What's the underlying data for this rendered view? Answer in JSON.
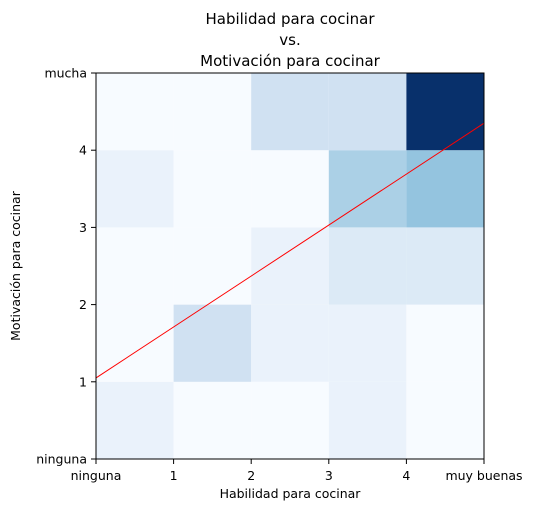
{
  "chart_data": {
    "type": "heatmap",
    "title_lines": [
      "Habilidad para cocinar",
      "vs.",
      "Motivación para cocinar"
    ],
    "xlabel": "Habilidad para cocinar",
    "ylabel": "Motivación para cocinar",
    "x_ticks": [
      0,
      1,
      2,
      3,
      4,
      5
    ],
    "x_tick_labels": [
      "ninguna",
      "1",
      "2",
      "3",
      "4",
      "muy buenas"
    ],
    "y_ticks": [
      0,
      1,
      2,
      3,
      4,
      5
    ],
    "y_tick_labels": [
      "ninguna",
      "1",
      "2",
      "3",
      "4",
      "mucha"
    ],
    "xlim": [
      0,
      5
    ],
    "ylim": [
      0,
      5
    ],
    "colormap": "Blues",
    "grid": false,
    "cells": [
      [
        1,
        0,
        0,
        1,
        0
      ],
      [
        0,
        3,
        1,
        1,
        0
      ],
      [
        0,
        0,
        1,
        2,
        2
      ],
      [
        1,
        0,
        0,
        5,
        6
      ],
      [
        0,
        0,
        3,
        3,
        15
      ]
    ],
    "cell_value_max": 15,
    "fit_line": {
      "color": "#ff0000",
      "y_at_x0": 1.05,
      "y_at_x5": 4.35
    }
  }
}
